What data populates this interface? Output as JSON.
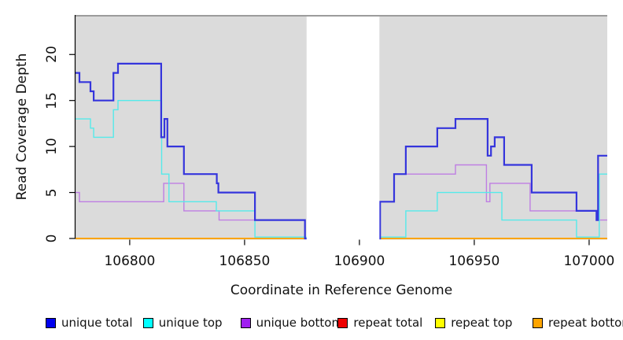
{
  "chart_data": {
    "type": "line",
    "subtype": "step-coverage",
    "title": "",
    "xlabel": "Coordinate in Reference Genome",
    "ylabel": "Read Coverage Depth",
    "xlim": [
      106776.4,
      107007.9
    ],
    "ylim": [
      0,
      24.3
    ],
    "x_ticks": [
      106800,
      106850,
      106900,
      106950,
      107000
    ],
    "x_tick_labels": [
      "106800",
      "106850",
      "106900",
      "106950",
      "107000"
    ],
    "y_ticks": [
      0,
      5,
      10,
      15,
      20
    ],
    "y_tick_labels": [
      "0",
      "5",
      "10",
      "15",
      "20"
    ],
    "grid": false,
    "panel_background": "#DBDBDB",
    "panel_top_border_color": "#9C9C9C",
    "gap_region": {
      "start": 106877,
      "end": 106908.7,
      "fill": "#FFFFFF"
    },
    "legend_position": "bottom",
    "draw_order": [
      "repeat total",
      "repeat top",
      "repeat bottom",
      "unique bottom",
      "unique top",
      "unique total"
    ],
    "series": [
      {
        "name": "unique total",
        "legend_color": "#0000EE",
        "line_color": "#3535DC",
        "stroke_width": 2.2,
        "steps": [
          [
            106776.4,
            18
          ],
          [
            106778.1,
            17
          ],
          [
            106782.9,
            16
          ],
          [
            106784.3,
            15
          ],
          [
            106792.9,
            18
          ],
          [
            106794.9,
            19
          ],
          [
            106813.7,
            11
          ],
          [
            106815.1,
            13
          ],
          [
            106816.4,
            10
          ],
          [
            106823.6,
            7
          ],
          [
            106837.9,
            6
          ],
          [
            106838.6,
            5
          ],
          [
            106854.5,
            2
          ],
          [
            106876.3,
            0
          ],
          [
            106909.0,
            4
          ],
          [
            106915.1,
            7
          ],
          [
            106920.2,
            10
          ],
          [
            106933.9,
            12
          ],
          [
            106941.8,
            13
          ],
          [
            106955.8,
            9
          ],
          [
            106957.3,
            10
          ],
          [
            106958.9,
            11
          ],
          [
            106963.0,
            8
          ],
          [
            106975.0,
            5
          ],
          [
            106994.5,
            3
          ],
          [
            107003.2,
            2
          ],
          [
            107003.9,
            9
          ]
        ]
      },
      {
        "name": "unique top",
        "legend_color": "#00FFFF",
        "line_color": "#55EAEA",
        "stroke_width": 1.4,
        "zero_lift": 0.15,
        "steps": [
          [
            106776.4,
            13
          ],
          [
            106782.9,
            12
          ],
          [
            106784.3,
            11
          ],
          [
            106792.9,
            14
          ],
          [
            106794.9,
            15
          ],
          [
            106813.9,
            7
          ],
          [
            106817.1,
            4
          ],
          [
            106837.7,
            3
          ],
          [
            106854.5,
            0
          ],
          [
            106920.2,
            3
          ],
          [
            106933.9,
            5
          ],
          [
            106962.0,
            2
          ],
          [
            106994.5,
            0
          ],
          [
            107004.4,
            7
          ]
        ]
      },
      {
        "name": "unique bottom",
        "legend_color": "#A020F0",
        "line_color": "#BF7EE3",
        "stroke_width": 1.4,
        "steps": [
          [
            106776.4,
            5
          ],
          [
            106778.1,
            4
          ],
          [
            106814.8,
            6
          ],
          [
            106823.6,
            3
          ],
          [
            106838.9,
            2
          ],
          [
            106876.3,
            0
          ],
          [
            106909.0,
            4
          ],
          [
            106915.1,
            7
          ],
          [
            106941.8,
            8
          ],
          [
            106955.3,
            4
          ],
          [
            106956.8,
            6
          ],
          [
            106974.3,
            3
          ],
          [
            107003.2,
            2
          ]
        ]
      },
      {
        "name": "repeat total",
        "legend_color": "#EE0000",
        "line_color": "#EE0000",
        "stroke_width": 1.4,
        "steps": [
          [
            106776.4,
            0
          ]
        ]
      },
      {
        "name": "repeat top",
        "legend_color": "#FFFF00",
        "line_color": "#FFFF00",
        "stroke_width": 1.4,
        "steps": [
          [
            106776.4,
            0
          ]
        ]
      },
      {
        "name": "repeat bottom",
        "legend_color": "#FFA500",
        "line_color": "#FFA500",
        "stroke_width": 1.8,
        "steps": [
          [
            106776.4,
            0
          ]
        ]
      }
    ]
  },
  "legend": {
    "items": [
      {
        "label": "unique total",
        "color": "#0000EE"
      },
      {
        "label": "unique top",
        "color": "#00FFFF"
      },
      {
        "label": "unique bottom",
        "color": "#A020F0"
      },
      {
        "label": "repeat total",
        "color": "#EE0000"
      },
      {
        "label": "repeat top",
        "color": "#FFFF00"
      },
      {
        "label": "repeat bottom",
        "color": "#FFA500"
      }
    ]
  }
}
